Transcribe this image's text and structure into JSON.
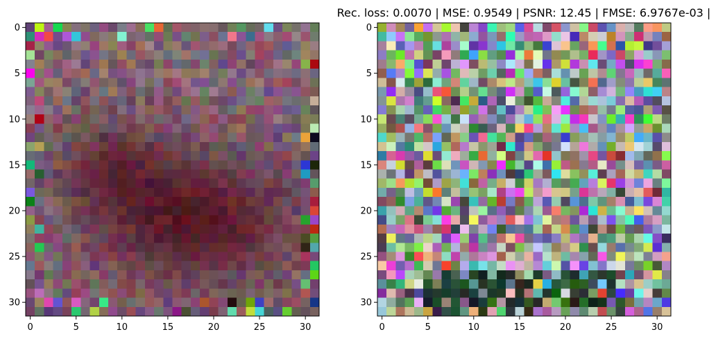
{
  "figure": {
    "title": "Rec. loss: 0.0070 | MSE: 0.9549 | PSNR: 12.45 | FMSE: 6.9767e-03 |"
  },
  "chart_data": [
    {
      "type": "heatmap",
      "title": "",
      "xlabel": "",
      "ylabel": "",
      "grid_size": [
        32,
        32
      ],
      "xlim": [
        -0.5,
        31.5
      ],
      "ylim": [
        31.5,
        -0.5
      ],
      "x_ticks": [
        0,
        5,
        10,
        15,
        20,
        25,
        30
      ],
      "y_ticks": [
        0,
        5,
        10,
        15,
        20,
        25,
        30
      ],
      "grid": false,
      "content": "32x32 RGB image with muted, mostly pinkish-grey pixels; a dark maroon blob concentrated around rows 15-28, columns 5-28"
    },
    {
      "type": "heatmap",
      "title": "Rec. loss: 0.0070 | MSE: 0.9549 | PSNR: 12.45 | FMSE: 6.9767e-03 |",
      "xlabel": "",
      "ylabel": "",
      "grid_size": [
        32,
        32
      ],
      "xlim": [
        -0.5,
        31.5
      ],
      "ylim": [
        31.5,
        -0.5
      ],
      "x_ticks": [
        0,
        5,
        10,
        15,
        20,
        25,
        30
      ],
      "y_ticks": [
        0,
        5,
        10,
        15,
        20,
        25,
        30
      ],
      "grid": false,
      "content": "32x32 RGB image of colorful random-looking pixels; saturated colors, darker greens and blacks near bottom rows 27-31"
    }
  ]
}
